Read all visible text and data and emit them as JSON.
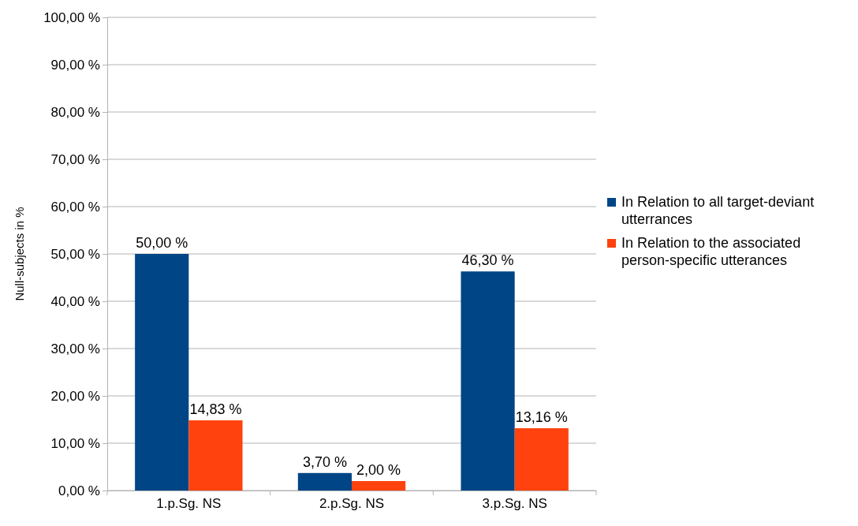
{
  "chart_data": {
    "type": "bar",
    "ylabel": "Null-subjects in %",
    "categories": [
      "1.p.Sg. NS",
      "2.p.Sg. NS",
      "3.p.Sg. NS"
    ],
    "series": [
      {
        "name": "In Relation to all target-deviant utterrances",
        "color": "#004586",
        "values": [
          50.0,
          3.7,
          46.3
        ],
        "value_labels": [
          "50,00 %",
          "3,70 %",
          "46,30 %"
        ]
      },
      {
        "name": "In Relation to the associated person-specific utterances",
        "color": "#ff420e",
        "values": [
          14.83,
          2.0,
          13.16
        ],
        "value_labels": [
          "14,83 %",
          "2,00 %",
          "13,16 %"
        ]
      }
    ],
    "ylim": [
      0,
      100
    ],
    "yticks": [
      {
        "value": 0,
        "label": "0,00 %"
      },
      {
        "value": 10,
        "label": "10,00 %"
      },
      {
        "value": 20,
        "label": "20,00 %"
      },
      {
        "value": 30,
        "label": "30,00 %"
      },
      {
        "value": 40,
        "label": "40,00 %"
      },
      {
        "value": 50,
        "label": "50,00 %"
      },
      {
        "value": 60,
        "label": "60,00 %"
      },
      {
        "value": 70,
        "label": "70,00 %"
      },
      {
        "value": 80,
        "label": "80,00 %"
      },
      {
        "value": 90,
        "label": "90,00 %"
      },
      {
        "value": 100,
        "label": "100,00 %"
      }
    ],
    "grid": "y",
    "legend": "right"
  }
}
